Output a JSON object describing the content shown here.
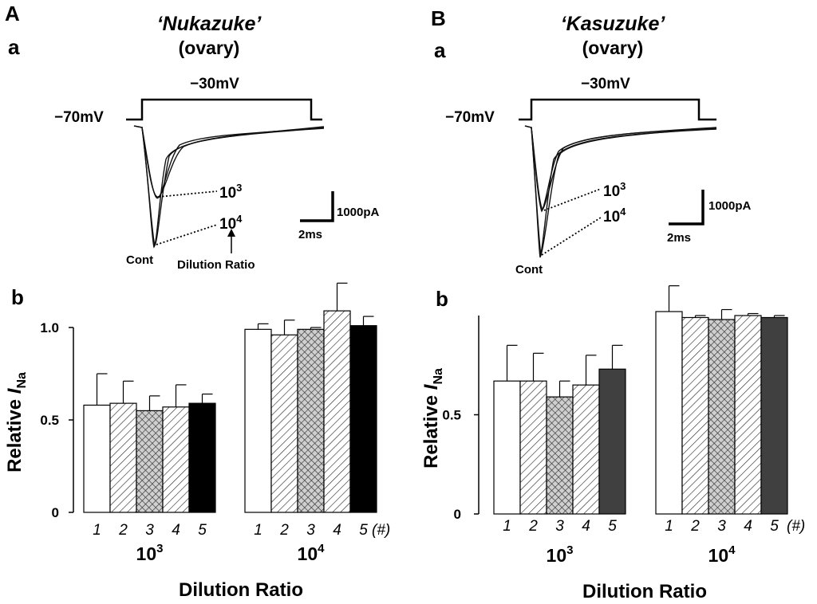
{
  "panel_A": {
    "letter": "A",
    "sub_a": "a",
    "sub_b": "b",
    "title_open": "‘",
    "title_name": "Nukazuke",
    "title_close": "’",
    "subtitle": "(ovary)",
    "hold_label": "−70mV",
    "step_label": "−30mV",
    "trace_labels": {
      "r3_base": "10",
      "r3_exp": "3",
      "r4_base": "10",
      "r4_exp": "4",
      "cont": "Cont",
      "dilution_note": "Dilution Ratio"
    },
    "scale_current": "1000pA",
    "scale_time": "2ms"
  },
  "panel_B": {
    "letter": "B",
    "sub_a": "a",
    "sub_b": "b",
    "title_open": "‘",
    "title_name": "Kasuzuke",
    "title_close": "’",
    "subtitle": "(ovary)",
    "hold_label": "−70mV",
    "step_label": "−30mV",
    "trace_labels": {
      "r3_base": "10",
      "r3_exp": "3",
      "r4_base": "10",
      "r4_exp": "4",
      "cont": "Cont"
    },
    "scale_current": "1000pA",
    "scale_time": "2ms"
  },
  "chart_data": [
    {
      "type": "bar",
      "panel": "A-b",
      "ylabel": "Relative I_Na",
      "ylabel_main": "Relative ",
      "ylabel_italic": "I",
      "ylabel_sub": "Na",
      "xlabel": "Dilution Ratio",
      "ylim": [
        0,
        1.0
      ],
      "yticks": [
        0,
        0.5,
        1.0
      ],
      "ytick_labels": [
        "0",
        "0.5",
        "1.0"
      ],
      "sample_numbers": [
        "1",
        "2",
        "3",
        "4",
        "5"
      ],
      "sample_suffix": "(#)",
      "groups": [
        {
          "label_base": "10",
          "label_exp": "3",
          "values": [
            0.58,
            0.59,
            0.55,
            0.57,
            0.59
          ],
          "errors": [
            0.17,
            0.12,
            0.08,
            0.12,
            0.05
          ]
        },
        {
          "label_base": "10",
          "label_exp": "4",
          "values": [
            0.99,
            0.96,
            0.99,
            1.09,
            1.01
          ],
          "errors": [
            0.03,
            0.08,
            0.01,
            0.15,
            0.05
          ]
        }
      ],
      "fills": [
        "white",
        "hatch",
        "crosshatch",
        "hatch",
        "#000000"
      ]
    },
    {
      "type": "bar",
      "panel": "B-b",
      "ylabel": "Relative I_Na",
      "ylabel_main": "Relative ",
      "ylabel_italic": "I",
      "ylabel_sub": "Na",
      "xlabel": "Dilution Ratio",
      "ylim": [
        0,
        1.0
      ],
      "yticks": [
        0,
        0.5
      ],
      "ytick_labels": [
        "0",
        "0.5"
      ],
      "sample_numbers": [
        "1",
        "2",
        "3",
        "4",
        "5"
      ],
      "sample_suffix": "(#)",
      "groups": [
        {
          "label_base": "10",
          "label_exp": "3",
          "values": [
            0.67,
            0.67,
            0.59,
            0.65,
            0.73
          ],
          "errors": [
            0.18,
            0.14,
            0.08,
            0.15,
            0.12
          ]
        },
        {
          "label_base": "10",
          "label_exp": "4",
          "values": [
            1.02,
            0.99,
            0.98,
            1.0,
            0.99
          ],
          "errors": [
            0.13,
            0.01,
            0.05,
            0.01,
            0.01
          ]
        }
      ],
      "fills": [
        "white",
        "hatch",
        "crosshatch",
        "hatch",
        "#404040"
      ]
    }
  ]
}
